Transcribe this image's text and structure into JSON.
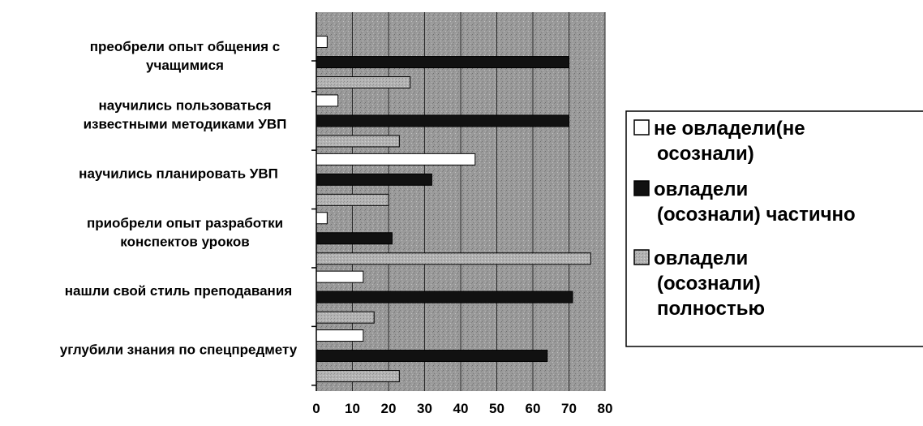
{
  "chart_data": {
    "type": "bar",
    "orientation": "horizontal",
    "categories": [
      [
        "преобрели опыт общения с",
        "учащимися"
      ],
      [
        "научились пользоваться",
        "известными методиками УВП"
      ],
      [
        "научились планировать УВП"
      ],
      [
        "приобрели опыт разработки",
        "конспектов уроков"
      ],
      [
        "нашли свой стиль преподавания"
      ],
      [
        "углубили знания по спецпредмету"
      ]
    ],
    "series": [
      {
        "name": [
          "не овладели(не",
          "осознали)"
        ],
        "color": "#ffffff",
        "values": [
          3,
          6,
          44,
          3,
          13,
          13
        ]
      },
      {
        "name": [
          "овладели",
          "(осознали) частично"
        ],
        "color": "#111111",
        "values": [
          70,
          70,
          32,
          21,
          71,
          64
        ]
      },
      {
        "name": [
          "овладели",
          "(осознали)",
          "полностью"
        ],
        "color": "#a9a9a9",
        "values": [
          26,
          23,
          20,
          76,
          16,
          23
        ]
      }
    ],
    "xlim": [
      0,
      80
    ],
    "xticks": [
      0,
      10,
      20,
      30,
      40,
      50,
      60,
      70,
      80
    ],
    "grid": true,
    "legend_position": "right"
  }
}
